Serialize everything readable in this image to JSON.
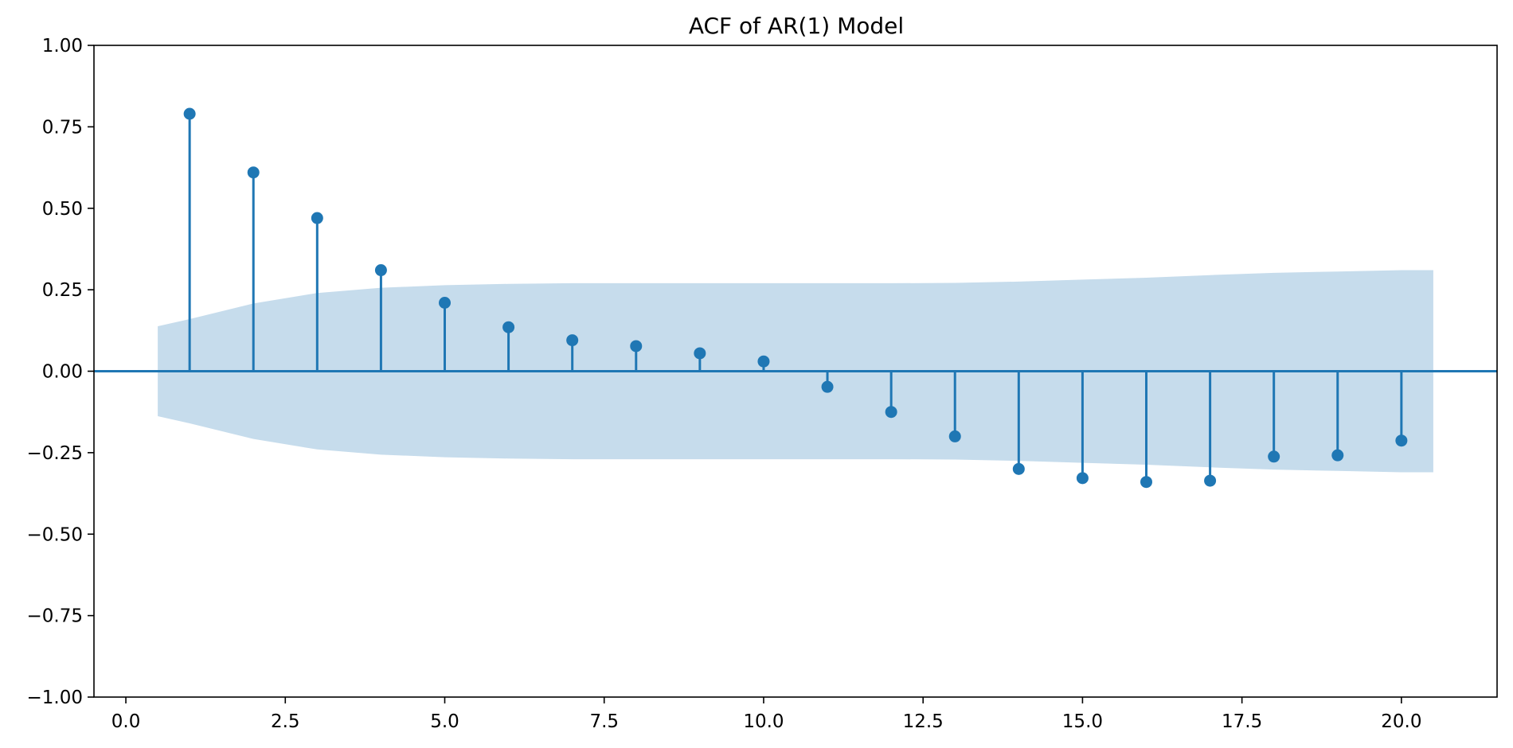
{
  "chart_data": {
    "type": "stem",
    "title": "ACF of AR(1) Model",
    "xlabel": "",
    "ylabel": "",
    "xlim": [
      -0.5,
      21.5
    ],
    "ylim": [
      -1.0,
      1.0
    ],
    "xticks": [
      0.0,
      2.5,
      5.0,
      7.5,
      10.0,
      12.5,
      15.0,
      17.5,
      20.0
    ],
    "xtick_labels": [
      "0.0",
      "2.5",
      "5.0",
      "7.5",
      "10.0",
      "12.5",
      "15.0",
      "17.5",
      "20.0"
    ],
    "yticks": [
      1.0,
      0.75,
      0.5,
      0.25,
      0.0,
      -0.25,
      -0.5,
      -0.75,
      -1.0
    ],
    "ytick_labels": [
      "1.00",
      "0.75",
      "0.50",
      "0.25",
      "0.00",
      "−0.25",
      "−0.50",
      "−0.75",
      "−1.00"
    ],
    "grid": false,
    "lags": [
      1,
      2,
      3,
      4,
      5,
      6,
      7,
      8,
      9,
      10,
      11,
      12,
      13,
      14,
      15,
      16,
      17,
      18,
      19,
      20
    ],
    "acf": [
      0.79,
      0.61,
      0.47,
      0.31,
      0.21,
      0.135,
      0.095,
      0.077,
      0.055,
      0.03,
      -0.048,
      -0.125,
      -0.2,
      -0.3,
      -0.328,
      -0.34,
      -0.336,
      -0.262,
      -0.258,
      -0.213
    ],
    "confidence_band": {
      "x": [
        0.5,
        1,
        2,
        3,
        4,
        5,
        6,
        7,
        8,
        9,
        10,
        11,
        12,
        13,
        14,
        15,
        16,
        17,
        18,
        19,
        20,
        20.5
      ],
      "upper": [
        0.138,
        0.16,
        0.208,
        0.24,
        0.256,
        0.264,
        0.268,
        0.27,
        0.27,
        0.27,
        0.27,
        0.27,
        0.27,
        0.271,
        0.275,
        0.281,
        0.287,
        0.295,
        0.302,
        0.306,
        0.31,
        0.31
      ]
    },
    "colors": {
      "stem": "#1f77b4",
      "band": "#c6dcec",
      "axis": "#000000"
    }
  }
}
